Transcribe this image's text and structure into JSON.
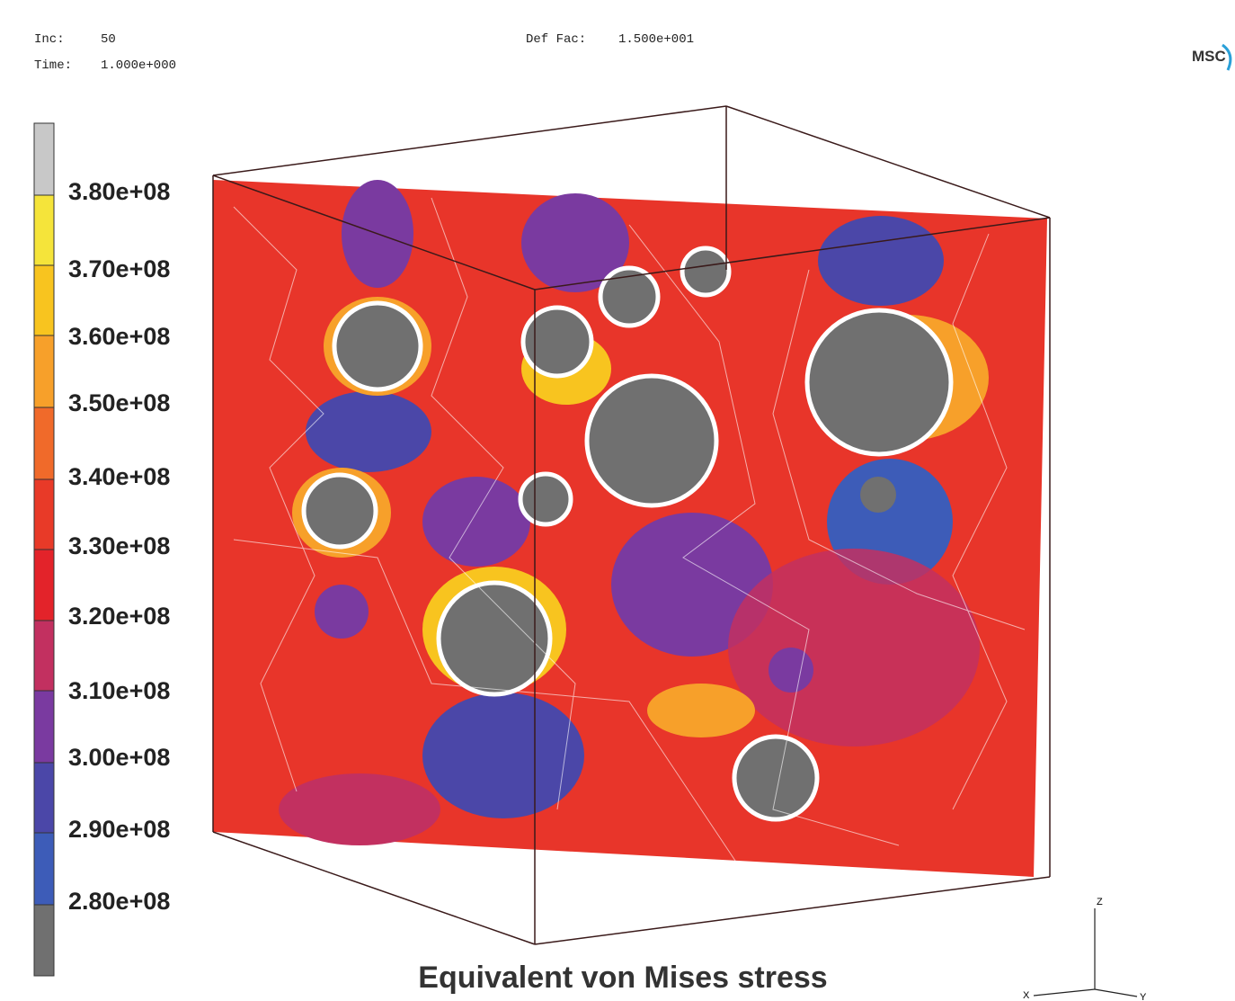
{
  "header": {
    "inc_label": "Inc:",
    "inc_value": "50",
    "time_label": "Time:",
    "time_value": "1.000e+000",
    "def_fac_label": "Def Fac:",
    "def_fac_value": "1.500e+001",
    "logo": "MSC"
  },
  "legend": {
    "labels": [
      "3.80e+08",
      "3.70e+08",
      "3.60e+08",
      "3.50e+08",
      "3.40e+08",
      "3.30e+08",
      "3.20e+08",
      "3.10e+08",
      "3.00e+08",
      "2.90e+08",
      "2.80e+08"
    ]
  },
  "footer": {
    "title": "Equivalent von Mises stress"
  },
  "triad": {
    "z": "Z",
    "x": "X",
    "y": "Y"
  }
}
